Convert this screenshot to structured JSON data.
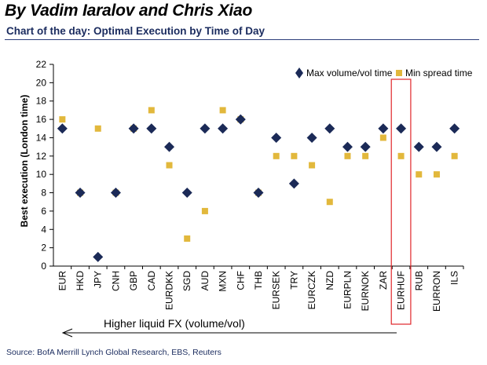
{
  "header": {
    "byline": "By Vadim Iaralov and Chris Xiao",
    "subtitle": "Chart of the day: Optimal Execution by Time of Day"
  },
  "footer": {
    "source": "Source: BofA Merrill Lynch Global Research, EBS, Reuters"
  },
  "colors": {
    "max_series": "#1b2a57",
    "min_series": "#e2b83c",
    "highlight": "#e0262a",
    "axis": "#000000"
  },
  "chart_data": {
    "type": "scatter",
    "title": "Chart of the day: Optimal Execution by Time of Day",
    "xlabel": "",
    "ylabel": "Best execution (London time)",
    "ylim": [
      0,
      22
    ],
    "yticks": [
      0,
      2,
      4,
      6,
      8,
      10,
      12,
      14,
      16,
      18,
      20,
      22
    ],
    "grid": false,
    "legend_position": "top-right",
    "categories": [
      "EUR",
      "HKD",
      "JPY",
      "CNH",
      "GBP",
      "CAD",
      "EURDKK",
      "SGD",
      "AUD",
      "MXN",
      "CHF",
      "THB",
      "EURSEK",
      "TRY",
      "EURCZK",
      "NZD",
      "EURPLN",
      "EURNOK",
      "ZAR",
      "EURHUF",
      "RUB",
      "EURRON",
      "ILS"
    ],
    "series": [
      {
        "name": "Max volume/vol time",
        "marker": "diamond",
        "values": [
          15,
          8,
          1,
          8,
          15,
          15,
          13,
          8,
          15,
          15,
          16,
          8,
          14,
          9,
          14,
          15,
          13,
          13,
          15,
          15,
          13,
          13,
          15
        ]
      },
      {
        "name": "Min spread time",
        "marker": "square",
        "values": [
          16,
          8,
          15,
          8,
          15,
          17,
          11,
          3,
          6,
          17,
          16,
          8,
          12,
          12,
          11,
          7,
          12,
          12,
          14,
          12,
          10,
          10,
          12
        ]
      }
    ],
    "highlighted_category": "EURHUF",
    "annotation": "Higher liquid FX (volume/vol)"
  }
}
